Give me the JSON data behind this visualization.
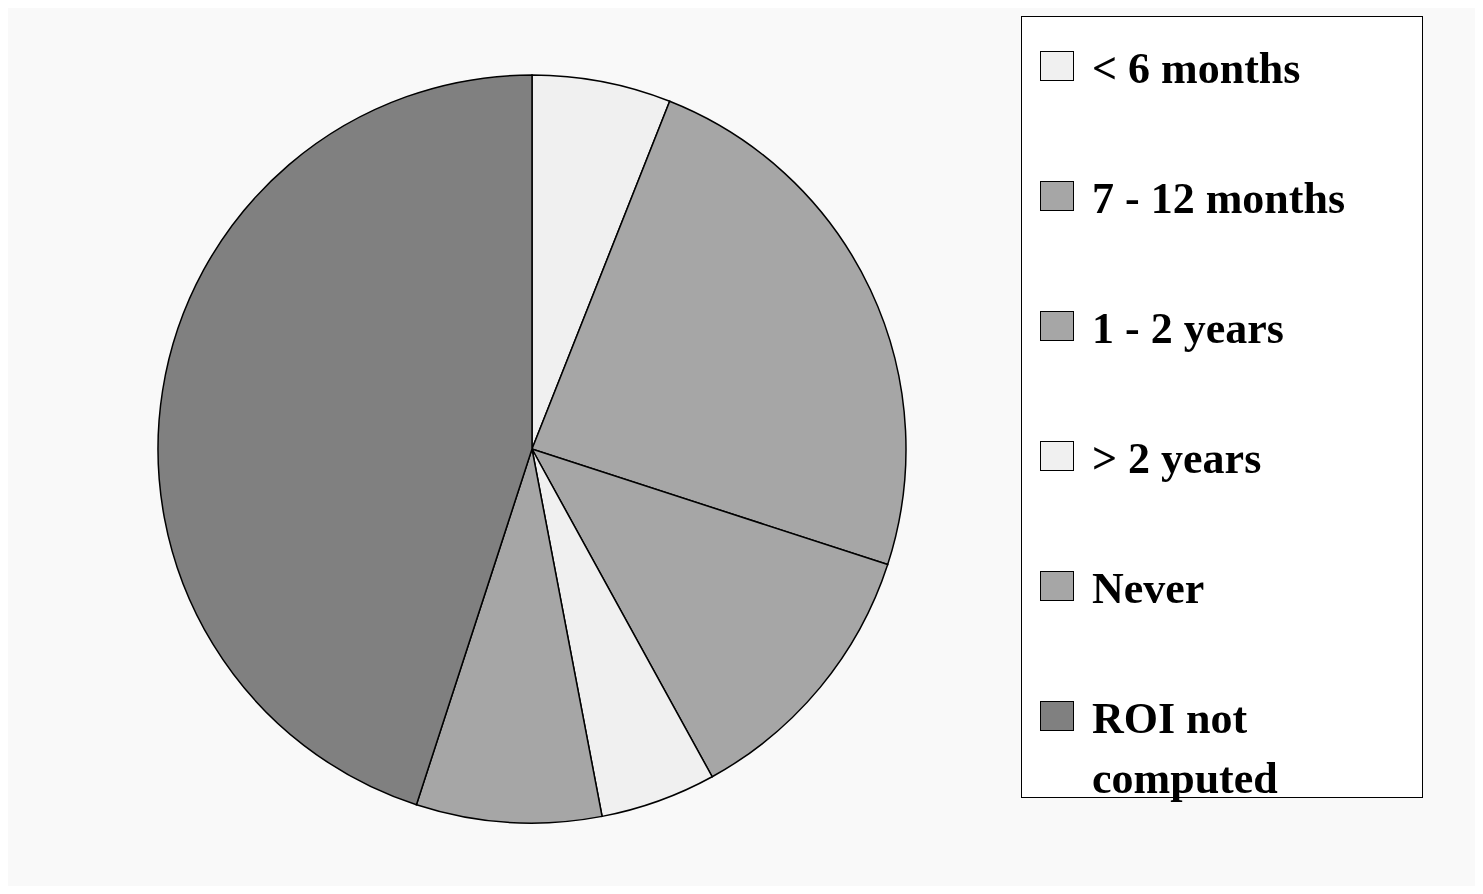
{
  "chart_data": {
    "type": "pie",
    "categories": [
      "< 6 months",
      "7 - 12 months",
      "1 - 2 years",
      "> 2 years",
      "Never",
      "ROI not computed"
    ],
    "values": [
      6,
      24,
      12,
      5,
      8,
      45
    ],
    "colors": [
      "#f0f0f0",
      "#a6a6a6",
      "#a6a6a6",
      "#f0f0f0",
      "#a6a6a6",
      "#808080"
    ],
    "legend": "right"
  }
}
